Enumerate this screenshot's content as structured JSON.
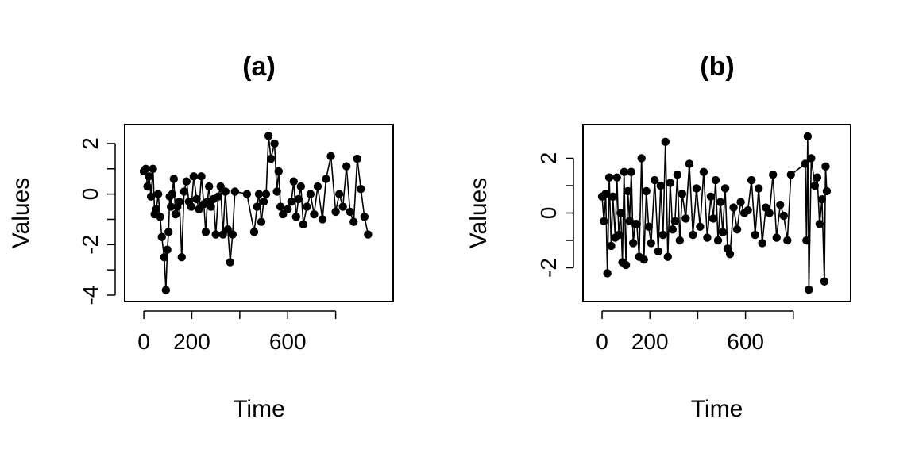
{
  "chart_data": [
    {
      "type": "line",
      "title": "(a)",
      "xlabel": "Time",
      "ylabel": "Values",
      "xticks": [
        0,
        200,
        600
      ],
      "yticks": [
        -4,
        -2,
        0,
        2
      ],
      "xlim": [
        -40,
        1000
      ],
      "ylim": [
        -4,
        2.5
      ],
      "grid": false,
      "markers": "filled-circle",
      "line_color": "#000000",
      "x": [
        0,
        8,
        15,
        22,
        30,
        38,
        45,
        52,
        60,
        68,
        75,
        85,
        92,
        98,
        103,
        108,
        113,
        118,
        125,
        132,
        140,
        148,
        158,
        168,
        178,
        188,
        198,
        208,
        220,
        230,
        240,
        250,
        258,
        265,
        272,
        280,
        290,
        300,
        310,
        320,
        330,
        340,
        350,
        360,
        370,
        380,
        430,
        460,
        472,
        480,
        490,
        500,
        510,
        520,
        530,
        545,
        555,
        562,
        570,
        580,
        600,
        615,
        625,
        635,
        645,
        655,
        665,
        680,
        695,
        710,
        725,
        745,
        760,
        780,
        800,
        815,
        830,
        845,
        860,
        875,
        890,
        905,
        920,
        935
      ],
      "y": [
        0.9,
        1.0,
        0.3,
        0.7,
        -0.1,
        1.0,
        -0.8,
        -0.6,
        0.0,
        -0.9,
        -1.7,
        -2.5,
        -3.8,
        -2.2,
        -1.5,
        -0.1,
        -0.5,
        0.0,
        0.6,
        -0.8,
        -0.5,
        -0.3,
        -2.5,
        0.1,
        0.5,
        -0.3,
        -0.5,
        0.7,
        -0.2,
        -0.6,
        0.7,
        -0.4,
        -1.5,
        -0.3,
        0.3,
        -0.5,
        -0.2,
        -1.6,
        -0.1,
        0.3,
        -1.6,
        0.1,
        -1.4,
        -2.7,
        -1.6,
        0.1,
        0.0,
        -1.5,
        -0.5,
        0.0,
        -1.1,
        -0.3,
        0.0,
        2.3,
        1.4,
        2.0,
        0.1,
        0.9,
        -0.5,
        -0.8,
        -0.6,
        -0.3,
        0.5,
        -0.9,
        -0.2,
        0.3,
        -1.2,
        -0.5,
        0.0,
        -0.8,
        0.3,
        -1.0,
        0.6,
        1.5,
        -0.7,
        0.0,
        -0.5,
        1.1,
        -0.7,
        -1.1,
        1.4,
        0.2,
        -0.9,
        -1.6
      ]
    },
    {
      "type": "line",
      "title": "(b)",
      "xlabel": "Time",
      "ylabel": "Values",
      "xticks": [
        0,
        200,
        600
      ],
      "yticks": [
        -2,
        0,
        2
      ],
      "xlim": [
        -40,
        1000
      ],
      "ylim": [
        -3,
        3
      ],
      "grid": false,
      "markers": "filled-circle",
      "line_color": "#000000",
      "x": [
        0,
        8,
        15,
        22,
        30,
        38,
        45,
        55,
        62,
        70,
        78,
        85,
        92,
        100,
        108,
        115,
        122,
        130,
        138,
        145,
        155,
        165,
        175,
        185,
        195,
        205,
        220,
        235,
        245,
        255,
        265,
        275,
        285,
        295,
        305,
        315,
        325,
        335,
        350,
        365,
        380,
        395,
        410,
        425,
        440,
        455,
        465,
        475,
        485,
        495,
        505,
        515,
        525,
        535,
        550,
        565,
        580,
        595,
        610,
        625,
        640,
        655,
        670,
        685,
        700,
        715,
        730,
        745,
        760,
        775,
        790,
        850,
        855,
        860,
        865,
        875,
        890,
        900,
        910,
        920,
        930,
        935,
        940
      ],
      "y": [
        0.6,
        -0.3,
        0.7,
        -2.2,
        1.3,
        -1.2,
        0.6,
        -0.9,
        1.3,
        -0.8,
        0.0,
        -1.8,
        1.5,
        -1.9,
        0.8,
        -0.3,
        1.5,
        -1.1,
        -0.4,
        -0.4,
        -1.6,
        2.0,
        -1.7,
        0.8,
        -0.5,
        -1.1,
        1.2,
        -1.4,
        1.0,
        -0.8,
        2.6,
        -1.6,
        1.1,
        -0.6,
        -0.3,
        1.4,
        -1.0,
        0.7,
        -0.2,
        1.8,
        -0.8,
        0.9,
        -0.5,
        1.5,
        -0.9,
        0.6,
        -0.2,
        1.2,
        -1.0,
        0.4,
        -0.7,
        0.9,
        -1.3,
        -1.5,
        0.2,
        -0.6,
        0.4,
        0.0,
        0.1,
        1.2,
        -0.8,
        0.9,
        -1.1,
        0.2,
        0.0,
        1.4,
        -0.9,
        0.3,
        -0.1,
        -1.0,
        1.4,
        1.8,
        -1.0,
        2.8,
        -2.8,
        2.0,
        1.0,
        1.3,
        -0.4,
        0.5,
        -2.5,
        1.7,
        0.8
      ]
    }
  ]
}
